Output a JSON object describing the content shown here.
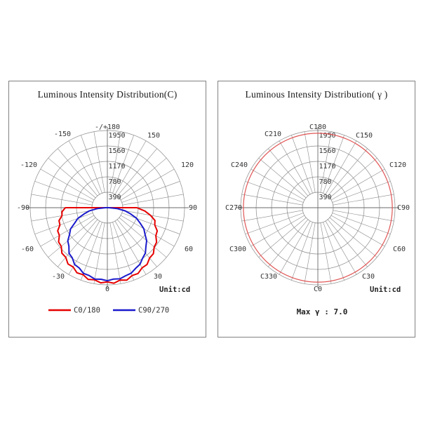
{
  "page": {
    "background": "#ffffff"
  },
  "panels": [
    {
      "title": "Luminous Intensity Distribution(C)"
    },
    {
      "title": "Luminous Intensity Distribution( γ )"
    }
  ],
  "chart_data": [
    {
      "type": "polar-photometric",
      "title": "Luminous Intensity Distribution(C)",
      "unit_label": "Unit:cd",
      "ring_values": [
        390,
        780,
        1170,
        1560,
        1950
      ],
      "ring_max": 1950,
      "grid_color": "#8a8a8a",
      "axis_color": "#6a6a6a",
      "angle_labels": [
        {
          "pos": 0,
          "label": "-/+180"
        },
        {
          "pos": 30,
          "label": "150"
        },
        {
          "pos": 60,
          "label": "120"
        },
        {
          "pos": 90,
          "label": "90"
        },
        {
          "pos": 120,
          "label": "60"
        },
        {
          "pos": 150,
          "label": "30"
        },
        {
          "pos": 180,
          "label": "0"
        },
        {
          "pos": 210,
          "label": "-30"
        },
        {
          "pos": 240,
          "label": "-60"
        },
        {
          "pos": 270,
          "label": "-90"
        },
        {
          "pos": 300,
          "label": "-120"
        },
        {
          "pos": 330,
          "label": "-150"
        }
      ],
      "series": [
        {
          "name": "C0/180",
          "color": "#e60000",
          "points": [
            [
              -90,
              1060
            ],
            [
              -85,
              1150
            ],
            [
              -80,
              1165
            ],
            [
              -75,
              1265
            ],
            [
              -70,
              1275
            ],
            [
              -65,
              1385
            ],
            [
              -60,
              1400
            ],
            [
              -55,
              1505
            ],
            [
              -50,
              1520
            ],
            [
              -45,
              1625
            ],
            [
              -40,
              1635
            ],
            [
              -35,
              1735
            ],
            [
              -30,
              1730
            ],
            [
              -25,
              1815
            ],
            [
              -20,
              1800
            ],
            [
              -15,
              1875
            ],
            [
              -10,
              1850
            ],
            [
              -5,
              1905
            ],
            [
              0,
              1875
            ],
            [
              5,
              1915
            ],
            [
              10,
              1855
            ],
            [
              15,
              1895
            ],
            [
              20,
              1825
            ],
            [
              25,
              1835
            ],
            [
              30,
              1755
            ],
            [
              35,
              1750
            ],
            [
              40,
              1660
            ],
            [
              45,
              1645
            ],
            [
              50,
              1545
            ],
            [
              55,
              1520
            ],
            [
              60,
              1415
            ],
            [
              65,
              1390
            ],
            [
              70,
              1275
            ],
            [
              75,
              1245
            ],
            [
              80,
              1105
            ],
            [
              85,
              950
            ],
            [
              90,
              745
            ]
          ]
        },
        {
          "name": "C90/270",
          "color": "#1a1acc",
          "points": [
            [
              -90,
              45
            ],
            [
              -85,
              250
            ],
            [
              -80,
              465
            ],
            [
              -75,
              605
            ],
            [
              -70,
              795
            ],
            [
              -65,
              905
            ],
            [
              -60,
              1075
            ],
            [
              -55,
              1165
            ],
            [
              -50,
              1305
            ],
            [
              -45,
              1375
            ],
            [
              -40,
              1505
            ],
            [
              -35,
              1545
            ],
            [
              -30,
              1655
            ],
            [
              -25,
              1680
            ],
            [
              -20,
              1765
            ],
            [
              -15,
              1775
            ],
            [
              -10,
              1830
            ],
            [
              -5,
              1815
            ],
            [
              0,
              1845
            ],
            [
              5,
              1810
            ],
            [
              10,
              1825
            ],
            [
              15,
              1780
            ],
            [
              20,
              1760
            ],
            [
              25,
              1690
            ],
            [
              30,
              1650
            ],
            [
              35,
              1555
            ],
            [
              40,
              1495
            ],
            [
              45,
              1380
            ],
            [
              50,
              1295
            ],
            [
              55,
              1160
            ],
            [
              60,
              1065
            ],
            [
              65,
              910
            ],
            [
              70,
              785
            ],
            [
              75,
              610
            ],
            [
              80,
              455
            ],
            [
              85,
              245
            ],
            [
              90,
              40
            ]
          ]
        }
      ],
      "legend": [
        {
          "label": "C0/180",
          "color": "#e60000"
        },
        {
          "label": "C90/270",
          "color": "#1a1acc"
        }
      ]
    },
    {
      "type": "polar-photometric",
      "title": "Luminous Intensity Distribution( γ )",
      "unit_label": "Unit:cd",
      "ring_values": [
        390,
        780,
        1170,
        1560,
        1950
      ],
      "ring_max": 1950,
      "grid_color": "#8a8a8a",
      "axis_color": "#6a6a6a",
      "angle_labels": [
        {
          "pos": 0,
          "label": "C180"
        },
        {
          "pos": 30,
          "label": "C150"
        },
        {
          "pos": 60,
          "label": "C120"
        },
        {
          "pos": 90,
          "label": "C90"
        },
        {
          "pos": 120,
          "label": "C60"
        },
        {
          "pos": 150,
          "label": "C30"
        },
        {
          "pos": 180,
          "label": "C0"
        },
        {
          "pos": 210,
          "label": "C330"
        },
        {
          "pos": 240,
          "label": "C300"
        },
        {
          "pos": 270,
          "label": "C270"
        },
        {
          "pos": 300,
          "label": "C240"
        },
        {
          "pos": 330,
          "label": "C210"
        }
      ],
      "series": [
        {
          "name": "constant-intensity-circle",
          "color": "#e05555",
          "constant_value": 1880
        }
      ],
      "footer": "Max γ : 7.0"
    }
  ]
}
